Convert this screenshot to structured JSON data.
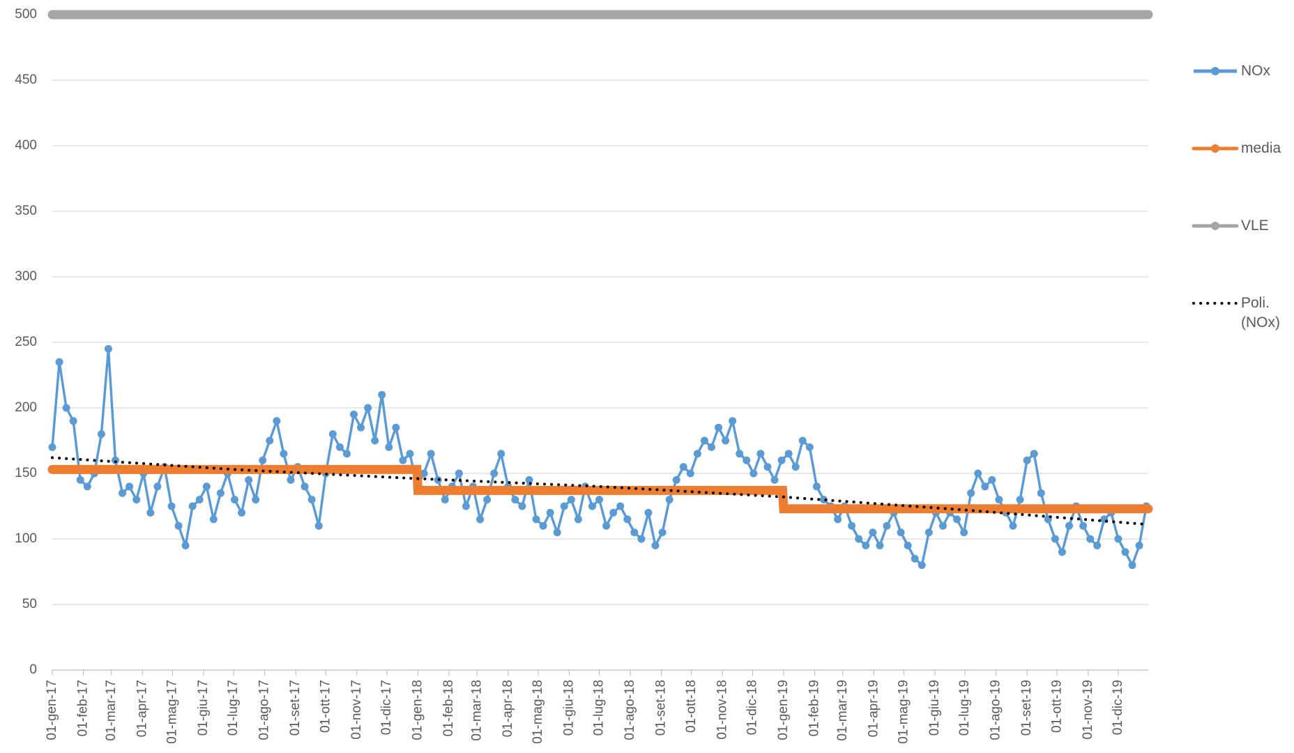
{
  "chart_data": {
    "type": "line",
    "xlim": [
      0,
      1094
    ],
    "ylim": [
      0,
      500
    ],
    "yticks": [
      0,
      50,
      100,
      150,
      200,
      250,
      300,
      350,
      400,
      450,
      500
    ],
    "grid": true,
    "legend": "right",
    "xticks": [
      {
        "value": 0,
        "label": "01-gen-17"
      },
      {
        "value": 31,
        "label": "01-feb-17"
      },
      {
        "value": 59,
        "label": "01-mar-17"
      },
      {
        "value": 90,
        "label": "01-apr-17"
      },
      {
        "value": 120,
        "label": "01-mag-17"
      },
      {
        "value": 151,
        "label": "01-giu-17"
      },
      {
        "value": 181,
        "label": "01-lug-17"
      },
      {
        "value": 212,
        "label": "01-ago-17"
      },
      {
        "value": 243,
        "label": "01-set-17"
      },
      {
        "value": 273,
        "label": "01-ott-17"
      },
      {
        "value": 304,
        "label": "01-nov-17"
      },
      {
        "value": 334,
        "label": "01-dic-17"
      },
      {
        "value": 365,
        "label": "01-gen-18"
      },
      {
        "value": 396,
        "label": "01-feb-18"
      },
      {
        "value": 424,
        "label": "01-mar-18"
      },
      {
        "value": 455,
        "label": "01-apr-18"
      },
      {
        "value": 485,
        "label": "01-mag-18"
      },
      {
        "value": 516,
        "label": "01-giu-18"
      },
      {
        "value": 546,
        "label": "01-lug-18"
      },
      {
        "value": 577,
        "label": "01-ago-18"
      },
      {
        "value": 608,
        "label": "01-set-18"
      },
      {
        "value": 638,
        "label": "01-ott-18"
      },
      {
        "value": 669,
        "label": "01-nov-18"
      },
      {
        "value": 699,
        "label": "01-dic-18"
      },
      {
        "value": 730,
        "label": "01-gen-19"
      },
      {
        "value": 761,
        "label": "01-feb-19"
      },
      {
        "value": 789,
        "label": "01-mar-19"
      },
      {
        "value": 820,
        "label": "01-apr-19"
      },
      {
        "value": 850,
        "label": "01-mag-19"
      },
      {
        "value": 881,
        "label": "01-giu-19"
      },
      {
        "value": 911,
        "label": "01-lug-19"
      },
      {
        "value": 942,
        "label": "01-ago-19"
      },
      {
        "value": 973,
        "label": "01-set-19"
      },
      {
        "value": 1003,
        "label": "01-ott-19"
      },
      {
        "value": 1034,
        "label": "01-nov-19"
      },
      {
        "value": 1064,
        "label": "01-dic-19"
      }
    ],
    "series": [
      {
        "name": "NOx",
        "color": "#5b9bd5",
        "style": "line-markers",
        "x": [
          0,
          7,
          14,
          21,
          28,
          35,
          42,
          49,
          56,
          63,
          70,
          77,
          84,
          91,
          98,
          105,
          112,
          119,
          126,
          133,
          140,
          147,
          154,
          161,
          168,
          175,
          182,
          189,
          196,
          203,
          210,
          217,
          224,
          231,
          238,
          245,
          252,
          259,
          266,
          273,
          280,
          287,
          294,
          301,
          308,
          315,
          322,
          329,
          336,
          343,
          350,
          357,
          364,
          371,
          378,
          385,
          392,
          399,
          406,
          413,
          420,
          427,
          434,
          441,
          448,
          455,
          462,
          469,
          476,
          483,
          490,
          497,
          504,
          511,
          518,
          525,
          532,
          539,
          546,
          553,
          560,
          567,
          574,
          581,
          588,
          595,
          602,
          609,
          616,
          623,
          630,
          637,
          644,
          651,
          658,
          665,
          672,
          679,
          686,
          693,
          700,
          707,
          714,
          721,
          728,
          735,
          742,
          749,
          756,
          763,
          770,
          777,
          784,
          791,
          798,
          805,
          812,
          819,
          826,
          833,
          840,
          847,
          854,
          861,
          868,
          875,
          882,
          889,
          896,
          903,
          910,
          917,
          924,
          931,
          938,
          945,
          952,
          959,
          966,
          973,
          980,
          987,
          994,
          1001,
          1008,
          1015,
          1022,
          1029,
          1036,
          1043,
          1050,
          1057,
          1064,
          1071,
          1078,
          1085,
          1092
        ],
        "values": [
          170,
          235,
          200,
          190,
          145,
          140,
          150,
          180,
          245,
          160,
          135,
          140,
          130,
          150,
          120,
          140,
          155,
          125,
          110,
          95,
          125,
          130,
          140,
          115,
          135,
          150,
          130,
          120,
          145,
          130,
          160,
          175,
          190,
          165,
          145,
          155,
          140,
          130,
          110,
          150,
          180,
          170,
          165,
          195,
          185,
          200,
          175,
          210,
          170,
          185,
          160,
          165,
          140,
          150,
          165,
          145,
          130,
          140,
          150,
          125,
          140,
          115,
          130,
          150,
          165,
          140,
          130,
          125,
          145,
          115,
          110,
          120,
          105,
          125,
          130,
          115,
          140,
          125,
          130,
          110,
          120,
          125,
          115,
          105,
          100,
          120,
          95,
          105,
          130,
          145,
          155,
          150,
          165,
          175,
          170,
          185,
          175,
          190,
          165,
          160,
          150,
          165,
          155,
          145,
          160,
          165,
          155,
          175,
          170,
          140,
          130,
          125,
          115,
          125,
          110,
          100,
          95,
          105,
          95,
          110,
          120,
          105,
          95,
          85,
          80,
          105,
          120,
          110,
          120,
          115,
          105,
          135,
          150,
          140,
          145,
          130,
          120,
          110,
          130,
          160,
          165,
          135,
          115,
          100,
          90,
          110,
          125,
          110,
          100,
          95,
          115,
          120,
          100,
          90,
          80,
          95,
          125
        ]
      },
      {
        "name": "media",
        "color": "#ed7d31",
        "style": "thick",
        "x": [
          0,
          364,
          365,
          729,
          730,
          1094
        ],
        "values": [
          153,
          153,
          137,
          137,
          123,
          123
        ]
      },
      {
        "name": "VLE",
        "color": "#a5a5a5",
        "style": "thick",
        "x": [
          0,
          1094
        ],
        "values": [
          500,
          500
        ]
      },
      {
        "name": "Poli. (NOx)",
        "color": "#000000",
        "style": "dotted",
        "x": [
          0,
          182,
          365,
          547,
          730,
          912,
          1094
        ],
        "values": [
          162,
          153,
          146,
          140,
          132,
          122,
          111
        ]
      }
    ]
  }
}
